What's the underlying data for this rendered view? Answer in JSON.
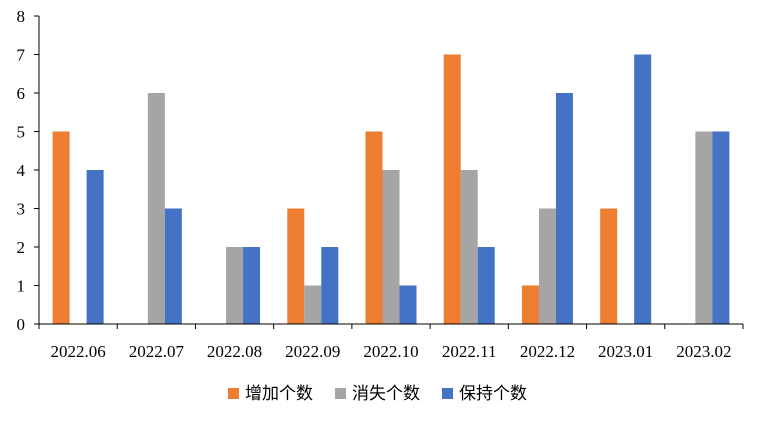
{
  "chart_data": {
    "type": "bar",
    "categories": [
      "2022.06",
      "2022.07",
      "2022.08",
      "2022.09",
      "2022.10",
      "2022.11",
      "2022.12",
      "2023.01",
      "2023.02"
    ],
    "series": [
      {
        "name": "增加个数",
        "color": "#ED7D31",
        "values": [
          5,
          0,
          0,
          3,
          5,
          7,
          1,
          3,
          0
        ]
      },
      {
        "name": "消失个数",
        "color": "#A5A5A5",
        "values": [
          0,
          6,
          2,
          1,
          4,
          4,
          3,
          0,
          5
        ]
      },
      {
        "name": "保持个数",
        "color": "#4472C4",
        "values": [
          4,
          3,
          2,
          2,
          1,
          2,
          6,
          7,
          5
        ]
      }
    ],
    "ylim": [
      0,
      8
    ],
    "yticks": [
      0,
      1,
      2,
      3,
      4,
      5,
      6,
      7,
      8
    ],
    "grid": false,
    "legend_position": "bottom"
  }
}
